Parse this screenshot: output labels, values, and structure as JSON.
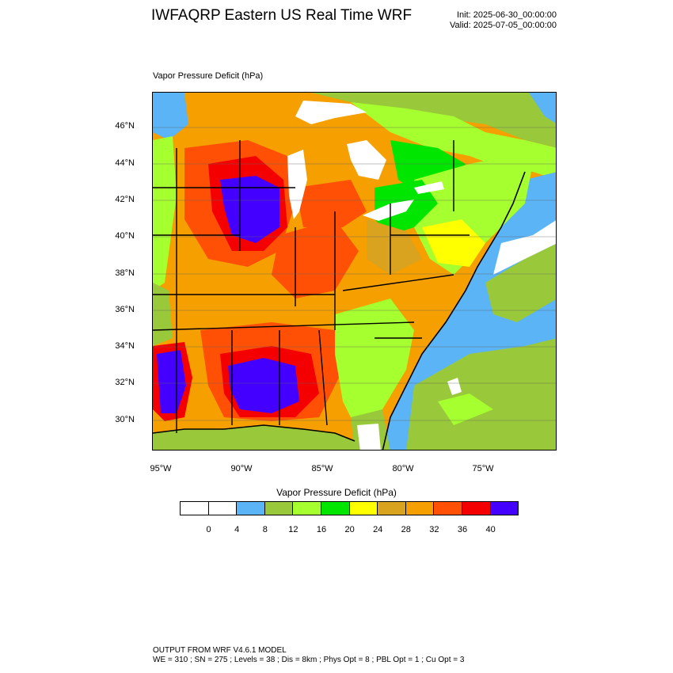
{
  "header": {
    "title": "IWFAQRP Eastern US Real Time WRF",
    "init": "Init: 2025-06-30_00:00:00",
    "valid": "Valid: 2025-07-05_00:00:00"
  },
  "map": {
    "subtitle": "Vapor Pressure Deficit   (hPa)",
    "lat_labels": [
      "46°N",
      "44°N",
      "42°N",
      "40°N",
      "38°N",
      "36°N",
      "34°N",
      "32°N",
      "30°N"
    ],
    "lon_labels": [
      "95°W",
      "90°W",
      "85°W",
      "80°W",
      "75°W"
    ],
    "background_color": "#f29a00",
    "ocean_color": "#5ab4f5",
    "land_colors": {
      "white": "#ffffff",
      "light_blue": "#5ab4f5",
      "olive_green": "#99c93a",
      "yellow_green": "#a6ff2e",
      "green": "#00e600",
      "yellow": "#ffff00",
      "gold": "#d9a21f",
      "orange": "#f59f00",
      "red_orange": "#ff5005",
      "red": "#f50000",
      "blue_violet": "#4400ff"
    }
  },
  "colorbar": {
    "title": "Vapor Pressure Deficit  (hPa)",
    "colors": [
      "#ffffff",
      "#ffffff",
      "#5ab4f5",
      "#99c93a",
      "#a6ff2e",
      "#00e600",
      "#ffff00",
      "#d9a21f",
      "#f59f00",
      "#ff5005",
      "#f50000",
      "#4400ff"
    ],
    "ticks": [
      "0",
      "4",
      "8",
      "12",
      "16",
      "20",
      "24",
      "28",
      "32",
      "36",
      "40"
    ]
  },
  "footer": {
    "line1": "OUTPUT FROM WRF V4.6.1 MODEL",
    "line2": "WE = 310 ; SN = 275 ; Levels = 38 ; Dis = 8km ; Phys Opt = 8 ; PBL Opt = 1 ; Cu Opt = 3"
  }
}
